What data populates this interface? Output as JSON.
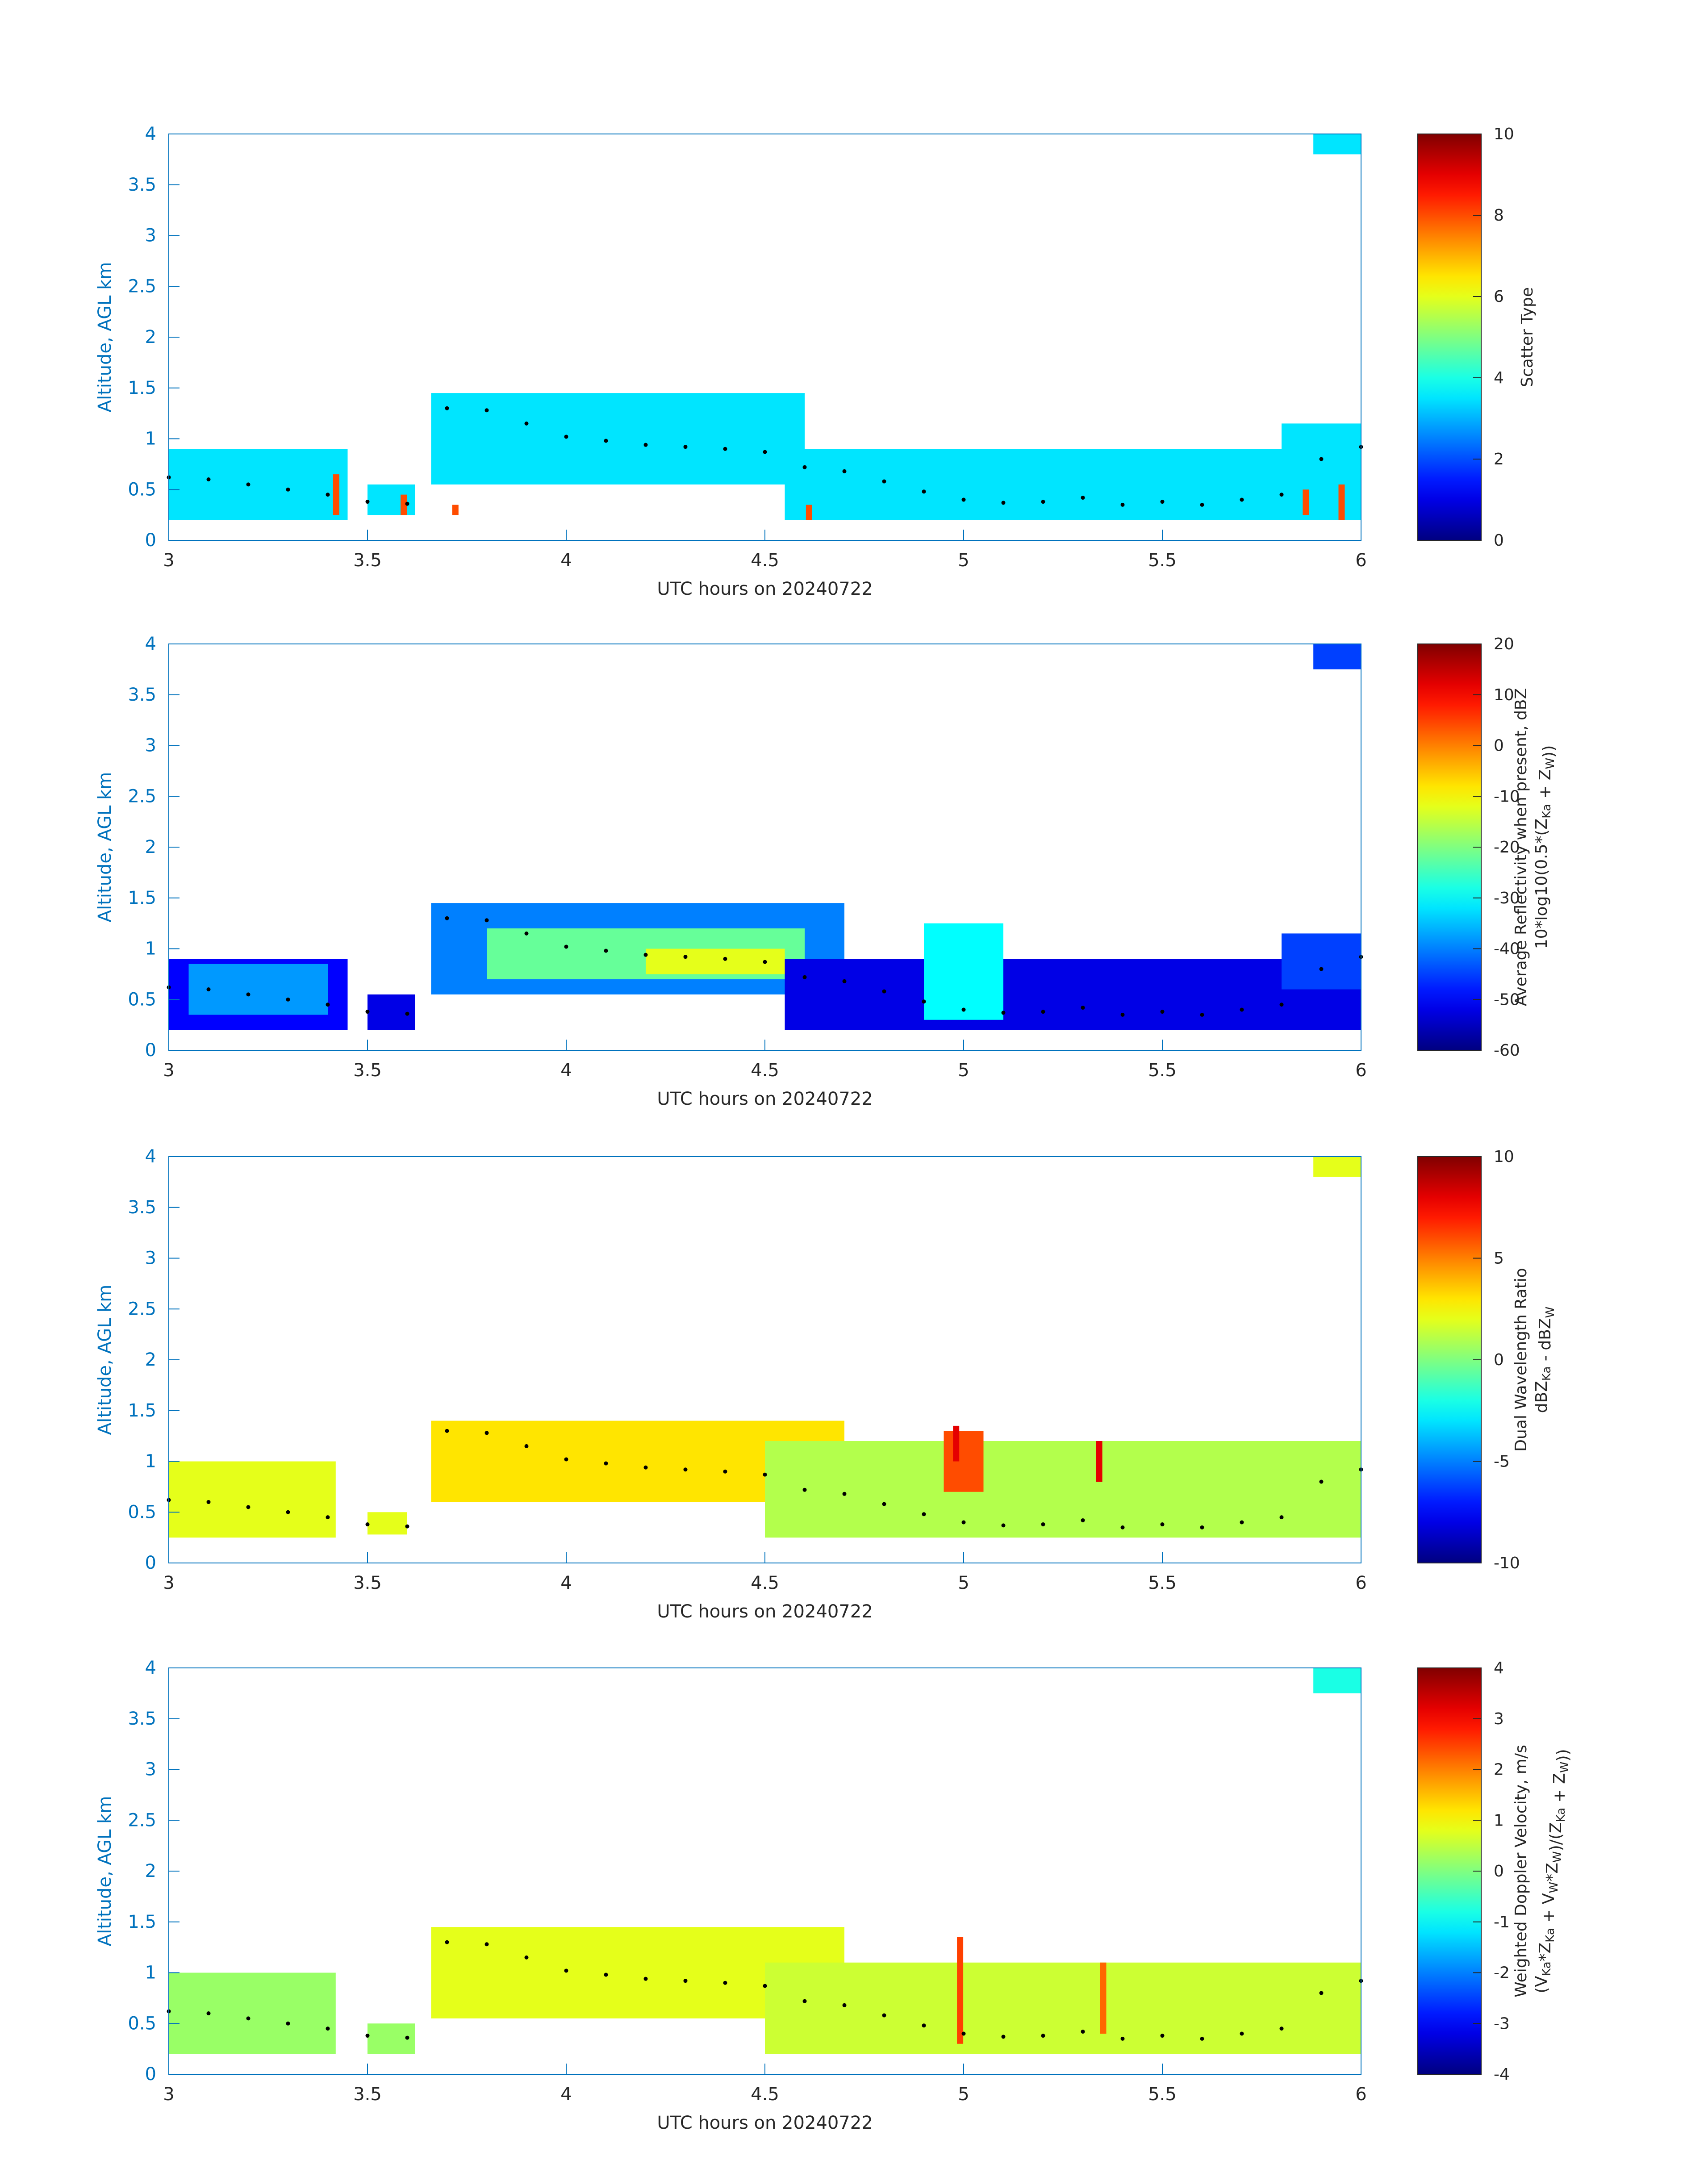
{
  "figure": {
    "xlabel": "UTC hours on 20240722",
    "ylabel": "Altitude, AGL km",
    "x_ticks": [
      "3",
      "3.5",
      "4",
      "4.5",
      "5",
      "5.5",
      "6"
    ],
    "y_ticks": [
      "0",
      "0.5",
      "1",
      "1.5",
      "2",
      "2.5",
      "3",
      "3.5",
      "4"
    ],
    "axis_color": "#0072BD",
    "label_color": "#262626"
  },
  "chart_data": [
    {
      "type": "heatmap",
      "colormap": "jet",
      "xlim": [
        3,
        6
      ],
      "ylim": [
        0,
        4
      ],
      "xlabel": "UTC hours on 20240722",
      "ylabel": "Altitude, AGL km",
      "colorbar": {
        "label_lines": [
          "Scatter Type"
        ],
        "clim": [
          0,
          10
        ],
        "ticks": [
          "0",
          "2",
          "4",
          "6",
          "8",
          "10"
        ]
      },
      "regions": [
        {
          "x": [
            3.0,
            3.45
          ],
          "y": [
            0.2,
            0.9
          ],
          "value": 3.5
        },
        {
          "x": [
            3.5,
            3.62
          ],
          "y": [
            0.25,
            0.55
          ],
          "value": 3.5
        },
        {
          "x": [
            3.66,
            4.6
          ],
          "y": [
            0.55,
            1.45
          ],
          "value": 3.5
        },
        {
          "x": [
            4.55,
            6.0
          ],
          "y": [
            0.2,
            0.9
          ],
          "value": 3.5
        },
        {
          "x": [
            5.8,
            6.0
          ],
          "y": [
            0.6,
            1.15
          ],
          "value": 3.5
        },
        {
          "x": [
            5.88,
            6.0
          ],
          "y": [
            3.8,
            4.0
          ],
          "value": 3.5
        }
      ],
      "spots": [
        {
          "x": 3.42,
          "y": [
            0.25,
            0.65
          ],
          "value": 8
        },
        {
          "x": 3.59,
          "y": [
            0.25,
            0.45
          ],
          "value": 8
        },
        {
          "x": 3.72,
          "y": [
            0.25,
            0.35
          ],
          "value": 8
        },
        {
          "x": 4.61,
          "y": [
            0.2,
            0.35
          ],
          "value": 8
        },
        {
          "x": 5.86,
          "y": [
            0.25,
            0.5
          ],
          "value": 8
        },
        {
          "x": 5.95,
          "y": [
            0.2,
            0.55
          ],
          "value": 8
        }
      ],
      "trace": {
        "x": [
          3.0,
          3.1,
          3.2,
          3.3,
          3.4,
          3.5,
          3.6,
          3.7,
          3.8,
          3.9,
          4.0,
          4.1,
          4.2,
          4.3,
          4.4,
          4.5,
          4.6,
          4.7,
          4.8,
          4.9,
          5.0,
          5.1,
          5.2,
          5.3,
          5.4,
          5.5,
          5.6,
          5.7,
          5.8,
          5.9,
          6.0
        ],
        "y": [
          0.62,
          0.6,
          0.55,
          0.5,
          0.45,
          0.38,
          0.36,
          1.3,
          1.28,
          1.15,
          1.02,
          0.98,
          0.94,
          0.92,
          0.9,
          0.87,
          0.72,
          0.68,
          0.58,
          0.48,
          0.4,
          0.37,
          0.38,
          0.42,
          0.35,
          0.38,
          0.35,
          0.4,
          0.45,
          0.8,
          0.92
        ]
      }
    },
    {
      "type": "heatmap",
      "colormap": "jet",
      "xlim": [
        3,
        6
      ],
      "ylim": [
        0,
        4
      ],
      "xlabel": "UTC hours on 20240722",
      "ylabel": "Altitude, AGL km",
      "colorbar": {
        "label_lines": [
          "Average Reflectivity when present, dBZ",
          "10*log10(0.5*(Z_Ka + Z_W))"
        ],
        "clim": [
          -60,
          20
        ],
        "ticks": [
          "-60",
          "-50",
          "-40",
          "-30",
          "-20",
          "-10",
          "0",
          "10",
          "20"
        ]
      },
      "regions": [
        {
          "x": [
            3.0,
            3.45
          ],
          "y": [
            0.2,
            0.9
          ],
          "value": -50
        },
        {
          "x": [
            3.05,
            3.4
          ],
          "y": [
            0.35,
            0.85
          ],
          "value": -38
        },
        {
          "x": [
            3.5,
            3.62
          ],
          "y": [
            0.2,
            0.55
          ],
          "value": -52
        },
        {
          "x": [
            3.66,
            4.7
          ],
          "y": [
            0.55,
            1.45
          ],
          "value": -40
        },
        {
          "x": [
            3.8,
            4.6
          ],
          "y": [
            0.7,
            1.2
          ],
          "value": -22
        },
        {
          "x": [
            4.2,
            4.55
          ],
          "y": [
            0.75,
            1.0
          ],
          "value": -12
        },
        {
          "x": [
            4.55,
            6.0
          ],
          "y": [
            0.2,
            0.9
          ],
          "value": -52
        },
        {
          "x": [
            4.9,
            5.1
          ],
          "y": [
            0.3,
            1.25
          ],
          "value": -30
        },
        {
          "x": [
            5.8,
            6.0
          ],
          "y": [
            0.6,
            1.15
          ],
          "value": -45
        },
        {
          "x": [
            5.88,
            6.0
          ],
          "y": [
            3.75,
            4.0
          ],
          "value": -45
        }
      ],
      "spots": [],
      "trace": {
        "x": [
          3.0,
          3.1,
          3.2,
          3.3,
          3.4,
          3.5,
          3.6,
          3.7,
          3.8,
          3.9,
          4.0,
          4.1,
          4.2,
          4.3,
          4.4,
          4.5,
          4.6,
          4.7,
          4.8,
          4.9,
          5.0,
          5.1,
          5.2,
          5.3,
          5.4,
          5.5,
          5.6,
          5.7,
          5.8,
          5.9,
          6.0
        ],
        "y": [
          0.62,
          0.6,
          0.55,
          0.5,
          0.45,
          0.38,
          0.36,
          1.3,
          1.28,
          1.15,
          1.02,
          0.98,
          0.94,
          0.92,
          0.9,
          0.87,
          0.72,
          0.68,
          0.58,
          0.48,
          0.4,
          0.37,
          0.38,
          0.42,
          0.35,
          0.38,
          0.35,
          0.4,
          0.45,
          0.8,
          0.92
        ]
      }
    },
    {
      "type": "heatmap",
      "colormap": "jet",
      "xlim": [
        3,
        6
      ],
      "ylim": [
        0,
        4
      ],
      "xlabel": "UTC hours on 20240722",
      "ylabel": "Altitude, AGL km",
      "colorbar": {
        "label_lines": [
          "Dual Wavelength Ratio",
          "dBZ_Ka - dBZ_W"
        ],
        "clim": [
          -10,
          10
        ],
        "ticks": [
          "-10",
          "-5",
          "0",
          "5",
          "10"
        ]
      },
      "regions": [
        {
          "x": [
            3.0,
            3.42
          ],
          "y": [
            0.25,
            1.0
          ],
          "value": 2
        },
        {
          "x": [
            3.5,
            3.6
          ],
          "y": [
            0.28,
            0.5
          ],
          "value": 2
        },
        {
          "x": [
            3.66,
            4.7
          ],
          "y": [
            0.6,
            1.4
          ],
          "value": 3
        },
        {
          "x": [
            4.5,
            6.0
          ],
          "y": [
            0.25,
            1.2
          ],
          "value": 1
        },
        {
          "x": [
            4.95,
            5.05
          ],
          "y": [
            0.7,
            1.3
          ],
          "value": 6
        },
        {
          "x": [
            5.88,
            6.0
          ],
          "y": [
            3.8,
            4.0
          ],
          "value": 2
        }
      ],
      "spots": [
        {
          "x": 4.98,
          "y": [
            1.0,
            1.35
          ],
          "value": 8
        },
        {
          "x": 5.34,
          "y": [
            0.8,
            1.2
          ],
          "value": 8
        }
      ],
      "trace": {
        "x": [
          3.0,
          3.1,
          3.2,
          3.3,
          3.4,
          3.5,
          3.6,
          3.7,
          3.8,
          3.9,
          4.0,
          4.1,
          4.2,
          4.3,
          4.4,
          4.5,
          4.6,
          4.7,
          4.8,
          4.9,
          5.0,
          5.1,
          5.2,
          5.3,
          5.4,
          5.5,
          5.6,
          5.7,
          5.8,
          5.9,
          6.0
        ],
        "y": [
          0.62,
          0.6,
          0.55,
          0.5,
          0.45,
          0.38,
          0.36,
          1.3,
          1.28,
          1.15,
          1.02,
          0.98,
          0.94,
          0.92,
          0.9,
          0.87,
          0.72,
          0.68,
          0.58,
          0.48,
          0.4,
          0.37,
          0.38,
          0.42,
          0.35,
          0.38,
          0.35,
          0.4,
          0.45,
          0.8,
          0.92
        ]
      }
    },
    {
      "type": "heatmap",
      "colormap": "jet",
      "xlim": [
        3,
        6
      ],
      "ylim": [
        0,
        4
      ],
      "xlabel": "UTC hours on 20240722",
      "ylabel": "Altitude, AGL km",
      "colorbar": {
        "label_lines": [
          "Weighted Doppler Velocity, m/s",
          "(V_Ka*Z_Ka + V_W*Z_W)/(Z_Ka + Z_W))"
        ],
        "clim": [
          -4,
          4
        ],
        "ticks": [
          "-4",
          "-3",
          "-2",
          "-1",
          "0",
          "1",
          "2",
          "3",
          "4"
        ]
      },
      "regions": [
        {
          "x": [
            3.0,
            3.42
          ],
          "y": [
            0.2,
            1.0
          ],
          "value": 0.2
        },
        {
          "x": [
            3.5,
            3.62
          ],
          "y": [
            0.2,
            0.5
          ],
          "value": 0.2
        },
        {
          "x": [
            3.66,
            4.7
          ],
          "y": [
            0.55,
            1.45
          ],
          "value": 0.8
        },
        {
          "x": [
            4.5,
            6.0
          ],
          "y": [
            0.2,
            1.1
          ],
          "value": 0.6
        },
        {
          "x": [
            5.88,
            6.0
          ],
          "y": [
            3.75,
            4.0
          ],
          "value": -0.8
        }
      ],
      "spots": [
        {
          "x": 4.99,
          "y": [
            0.3,
            1.35
          ],
          "value": 2.5
        },
        {
          "x": 5.35,
          "y": [
            0.4,
            1.1
          ],
          "value": 2.2
        }
      ],
      "trace": {
        "x": [
          3.0,
          3.1,
          3.2,
          3.3,
          3.4,
          3.5,
          3.6,
          3.7,
          3.8,
          3.9,
          4.0,
          4.1,
          4.2,
          4.3,
          4.4,
          4.5,
          4.6,
          4.7,
          4.8,
          4.9,
          5.0,
          5.1,
          5.2,
          5.3,
          5.4,
          5.5,
          5.6,
          5.7,
          5.8,
          5.9,
          6.0
        ],
        "y": [
          0.62,
          0.6,
          0.55,
          0.5,
          0.45,
          0.38,
          0.36,
          1.3,
          1.28,
          1.15,
          1.02,
          0.98,
          0.94,
          0.92,
          0.9,
          0.87,
          0.72,
          0.68,
          0.58,
          0.48,
          0.4,
          0.37,
          0.38,
          0.42,
          0.35,
          0.38,
          0.35,
          0.4,
          0.45,
          0.8,
          0.92
        ]
      }
    }
  ]
}
